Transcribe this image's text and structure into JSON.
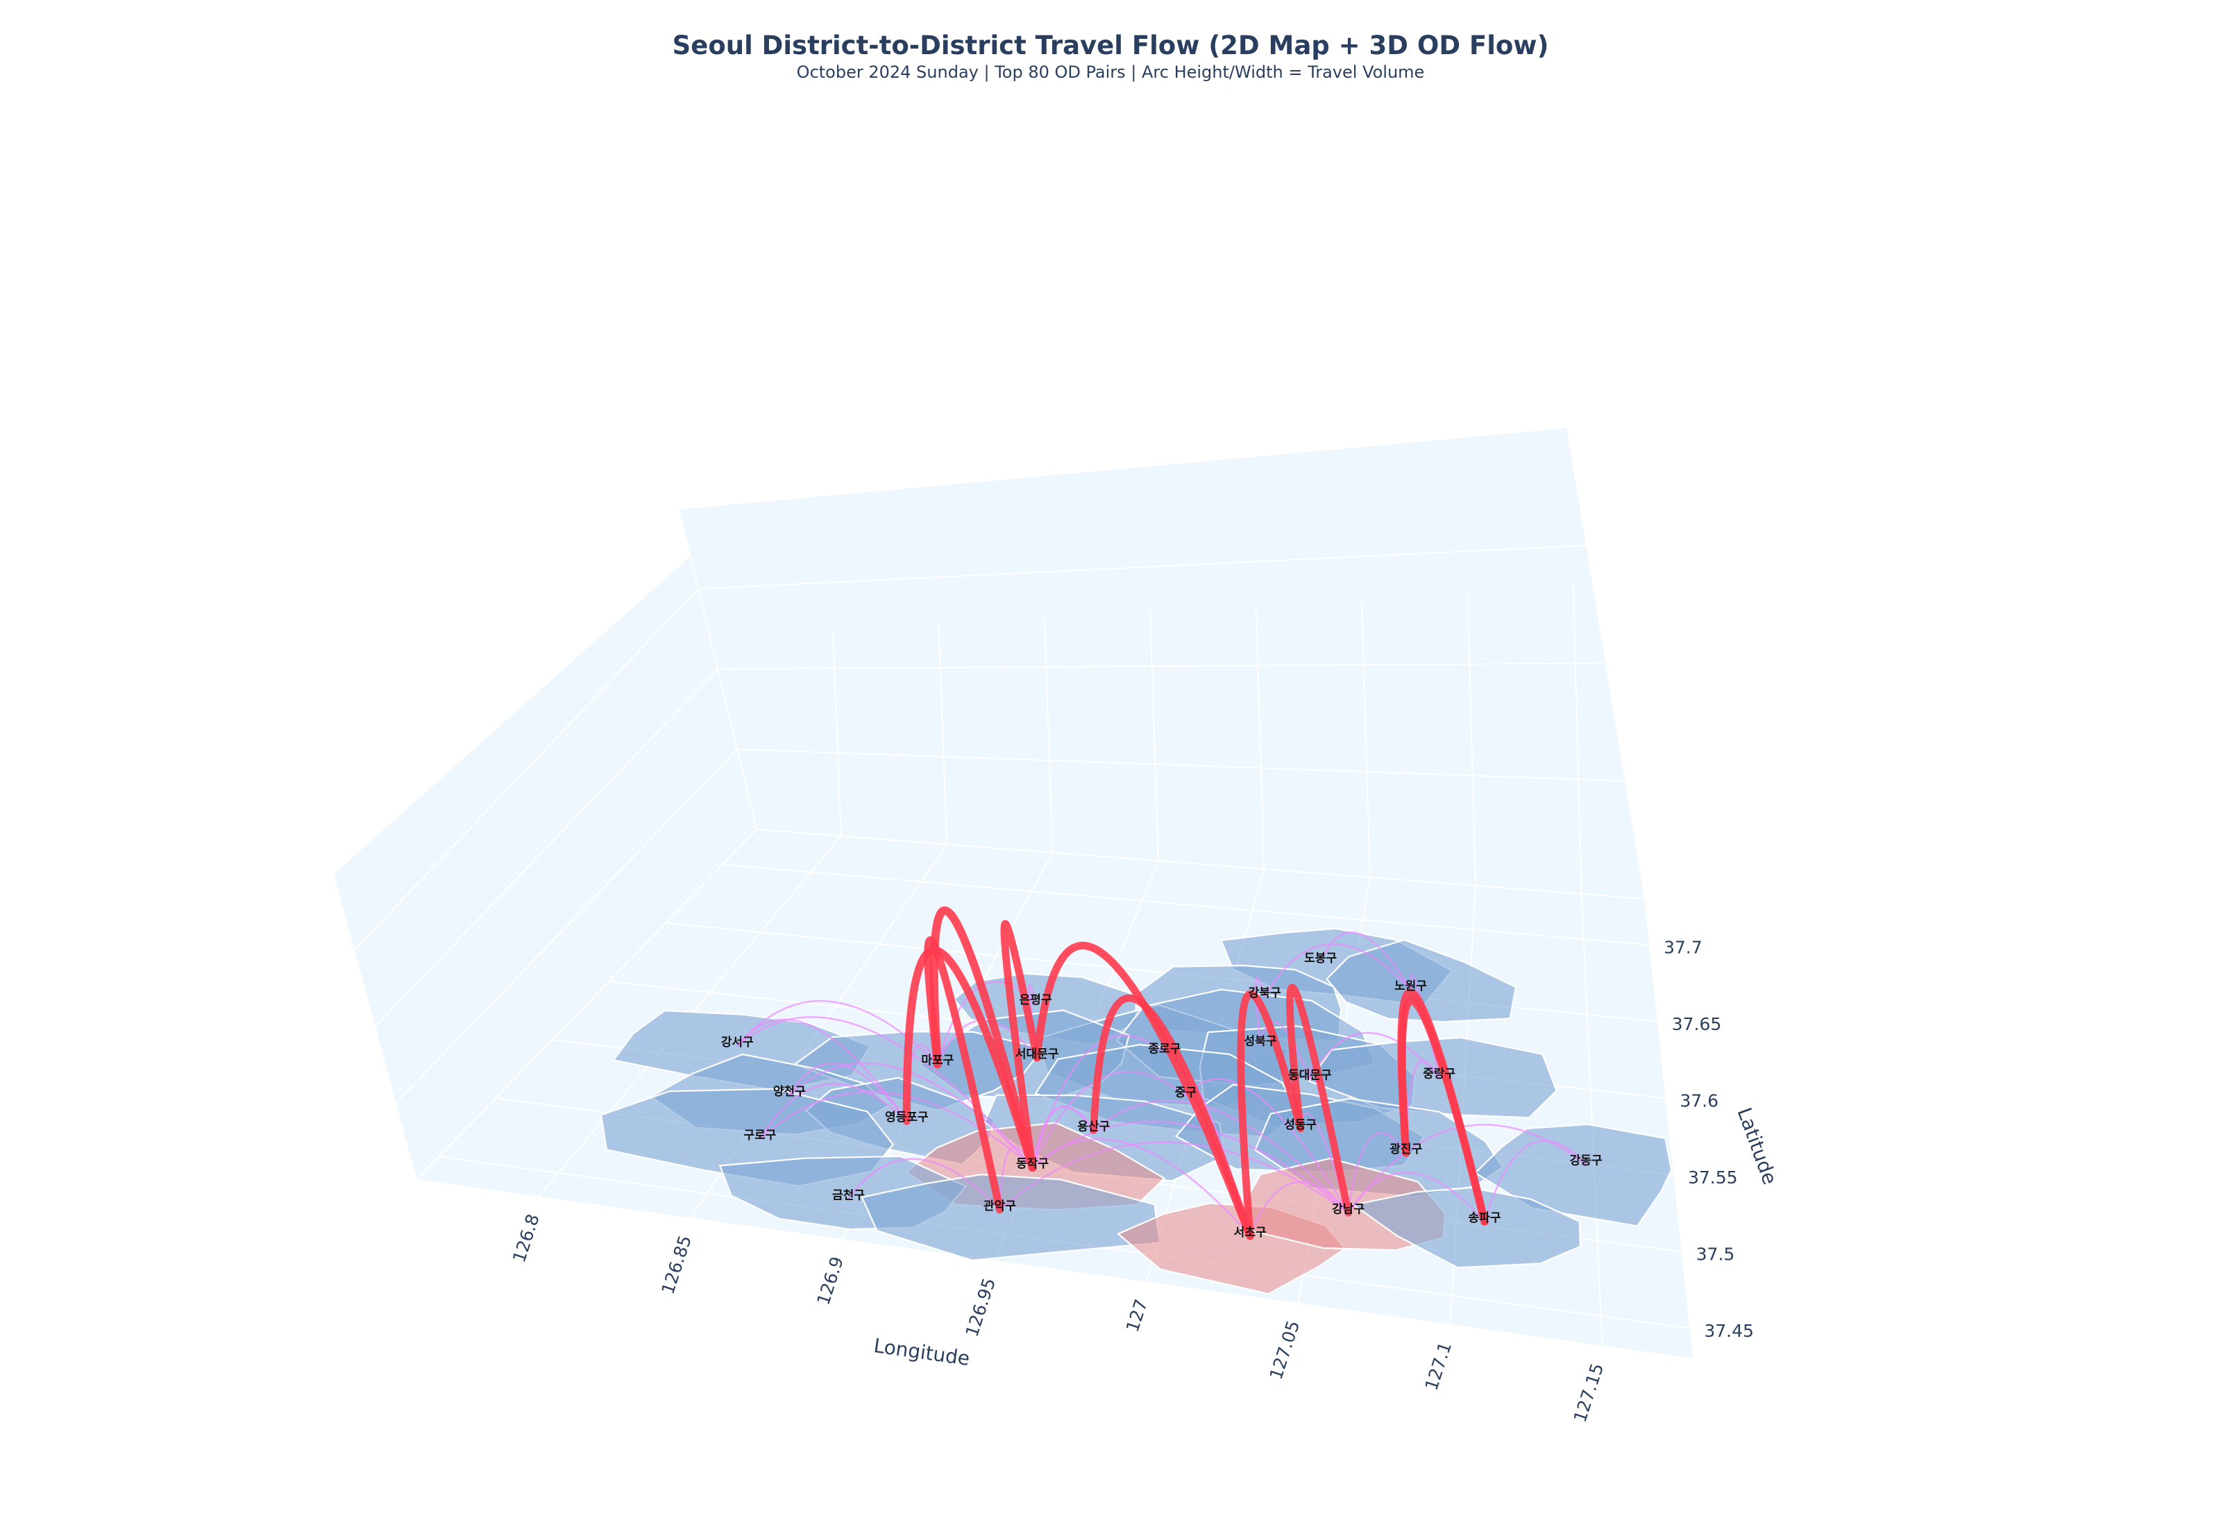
{
  "title": "Seoul District-to-District Travel Flow (2D Map + 3D OD Flow)",
  "subtitle": "October 2024 Sunday | Top 80 OD Pairs | Arc Height/Width = Travel Volume",
  "chart_data": {
    "type": "3d-map-arcs",
    "xlabel": "Longitude",
    "ylabel": "Latitude",
    "xlim": [
      126.76,
      127.18
    ],
    "ylim": [
      37.43,
      37.73
    ],
    "x_ticks": [
      "126.8",
      "126.85",
      "126.9",
      "126.95",
      "127",
      "127.05",
      "127.1",
      "127.15"
    ],
    "y_ticks": [
      "37.45",
      "37.5",
      "37.55",
      "37.6",
      "37.65",
      "37.7"
    ],
    "grid": true,
    "colors": {
      "district_fill": "#7ea6d4",
      "district_highlight": "#e88a8a",
      "district_edge": "#ffffff",
      "arc_major": "#ff3b4e",
      "arc_minor": "#ee88ff",
      "scene_bg": "#eef6fe"
    },
    "districts": [
      {
        "name": "도봉구",
        "lon": 127.035,
        "lat": 37.668
      },
      {
        "name": "강북구",
        "lon": 127.015,
        "lat": 37.64
      },
      {
        "name": "노원구",
        "lon": 127.075,
        "lat": 37.655
      },
      {
        "name": "은평구",
        "lon": 126.925,
        "lat": 37.618
      },
      {
        "name": "종로구",
        "lon": 126.982,
        "lat": 37.593
      },
      {
        "name": "성북구",
        "lon": 127.018,
        "lat": 37.606
      },
      {
        "name": "강서구",
        "lon": 126.825,
        "lat": 37.562
      },
      {
        "name": "서대문구",
        "lon": 126.935,
        "lat": 37.579
      },
      {
        "name": "마포구",
        "lon": 126.9,
        "lat": 37.566
      },
      {
        "name": "동대문구",
        "lon": 127.04,
        "lat": 37.586
      },
      {
        "name": "중랑구",
        "lon": 127.09,
        "lat": 37.597
      },
      {
        "name": "중구",
        "lon": 126.995,
        "lat": 37.564
      },
      {
        "name": "양천구",
        "lon": 126.855,
        "lat": 37.53
      },
      {
        "name": "영등포구",
        "lon": 126.9,
        "lat": 37.522
      },
      {
        "name": "용산구",
        "lon": 126.966,
        "lat": 37.532
      },
      {
        "name": "성동구",
        "lon": 127.04,
        "lat": 37.551
      },
      {
        "name": "광진구",
        "lon": 127.08,
        "lat": 37.543
      },
      {
        "name": "강동구",
        "lon": 127.147,
        "lat": 37.55
      },
      {
        "name": "구로구",
        "lon": 126.855,
        "lat": 37.495
      },
      {
        "name": "동작구",
        "lon": 126.95,
        "lat": 37.5
      },
      {
        "name": "금천구",
        "lon": 126.895,
        "lat": 37.46
      },
      {
        "name": "관악구",
        "lon": 126.945,
        "lat": 37.467
      },
      {
        "name": "서초구",
        "lon": 127.03,
        "lat": 37.472
      },
      {
        "name": "강남구",
        "lon": 127.062,
        "lat": 37.497
      },
      {
        "name": "송파구",
        "lon": 127.11,
        "lat": 37.503
      }
    ],
    "major_flows": [
      {
        "from": "동작구",
        "to": "마포구",
        "volume": 1.0
      },
      {
        "from": "동작구",
        "to": "영등포구",
        "volume": 0.9
      },
      {
        "from": "관악구",
        "to": "마포구",
        "volume": 0.85
      },
      {
        "from": "동작구",
        "to": "서대문구",
        "volume": 0.8
      },
      {
        "from": "서초구",
        "to": "서대문구",
        "volume": 0.85
      },
      {
        "from": "서초구",
        "to": "용산구",
        "volume": 0.75
      },
      {
        "from": "서초구",
        "to": "성동구",
        "volume": 0.8
      },
      {
        "from": "강남구",
        "to": "성동구",
        "volume": 0.75
      },
      {
        "from": "송파구",
        "to": "광진구",
        "volume": 0.9
      },
      {
        "from": "송파구",
        "to": "광진구",
        "volume": 0.8
      }
    ],
    "minor_flows": [
      {
        "from": "강서구",
        "to": "동작구"
      },
      {
        "from": "강서구",
        "to": "마포구"
      },
      {
        "from": "강서구",
        "to": "영등포구"
      },
      {
        "from": "양천구",
        "to": "영등포구"
      },
      {
        "from": "양천구",
        "to": "동작구"
      },
      {
        "from": "구로구",
        "to": "동작구"
      },
      {
        "from": "구로구",
        "to": "영등포구"
      },
      {
        "from": "금천구",
        "to": "관악구"
      },
      {
        "from": "은평구",
        "to": "서대문구"
      },
      {
        "from": "은평구",
        "to": "마포구"
      },
      {
        "from": "종로구",
        "to": "중구"
      },
      {
        "from": "종로구",
        "to": "동작구"
      },
      {
        "from": "중구",
        "to": "동작구"
      },
      {
        "from": "중구",
        "to": "강남구"
      },
      {
        "from": "중구",
        "to": "서초구"
      },
      {
        "from": "용산구",
        "to": "동작구"
      },
      {
        "from": "용산구",
        "to": "강남구"
      },
      {
        "from": "성북구",
        "to": "동대문구"
      },
      {
        "from": "동대문구",
        "to": "강남구"
      },
      {
        "from": "동대문구",
        "to": "중랑구"
      },
      {
        "from": "노원구",
        "to": "도봉구"
      },
      {
        "from": "노원구",
        "to": "강북구"
      },
      {
        "from": "노원구",
        "to": "중랑구"
      },
      {
        "from": "광진구",
        "to": "강남구"
      },
      {
        "from": "성동구",
        "to": "강남구"
      },
      {
        "from": "강동구",
        "to": "송파구"
      },
      {
        "from": "강동구",
        "to": "강남구"
      },
      {
        "from": "서초구",
        "to": "강남구"
      },
      {
        "from": "서초구",
        "to": "동작구"
      },
      {
        "from": "관악구",
        "to": "동작구"
      },
      {
        "from": "관악구",
        "to": "강남구"
      },
      {
        "from": "영등포구",
        "to": "마포구"
      },
      {
        "from": "동작구",
        "to": "강남구"
      },
      {
        "from": "동작구",
        "to": "용산구"
      },
      {
        "from": "마포구",
        "to": "서대문구"
      },
      {
        "from": "송파구",
        "to": "강남구"
      },
      {
        "from": "강북구",
        "to": "성북구"
      },
      {
        "from": "중랑구",
        "to": "광진구"
      }
    ]
  }
}
